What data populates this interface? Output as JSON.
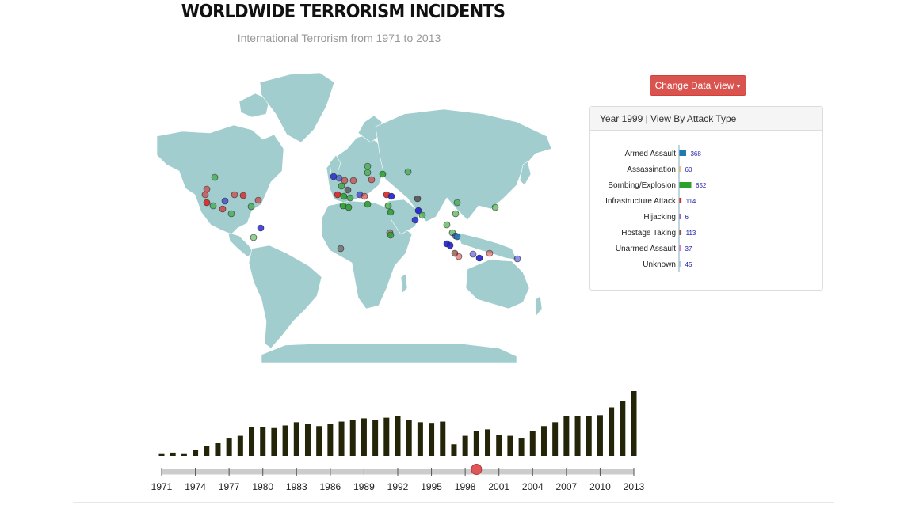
{
  "header": {
    "title": "WORLDWIDE TERRORISM INCIDENTS",
    "subtitle": "International Terrorism from 1971 to 2013"
  },
  "controls": {
    "change_view_label": "Change Data View"
  },
  "panel": {
    "heading": "Year 1999 | View By Attack Type"
  },
  "colors": {
    "land": "#a2cdcf",
    "timeline_bar": "#242409",
    "slider_track": "#cccccc",
    "slider_handle": "#e15759"
  },
  "chart_data": [
    {
      "type": "bar",
      "orientation": "horizontal",
      "categories": [
        "Armed Assault",
        "Assassination",
        "Bombing/Explosion",
        "Infrastructure Attack",
        "Hijacking",
        "Hostage Taking",
        "Unarmed Assault",
        "Unknown"
      ],
      "values": [
        368,
        60,
        652,
        114,
        6,
        113,
        37,
        45
      ],
      "colors": [
        "#1f77b4",
        "#ffbb78",
        "#2ca02c",
        "#d62728",
        "#9467bd",
        "#8c564b",
        "#e377c2",
        "#aec7e8"
      ]
    },
    {
      "type": "bar",
      "x": [
        1971,
        1972,
        1973,
        1974,
        1975,
        1976,
        1977,
        1978,
        1979,
        1980,
        1981,
        1982,
        1983,
        1984,
        1985,
        1986,
        1987,
        1988,
        1989,
        1990,
        1991,
        1992,
        1993,
        1994,
        1995,
        1996,
        1997,
        1998,
        1999,
        2000,
        2001,
        2002,
        2003,
        2004,
        2005,
        2006,
        2007,
        2008,
        2009,
        2010,
        2011,
        2012,
        2013
      ],
      "values": [
        4,
        5,
        4,
        9,
        15,
        20,
        28,
        31,
        45,
        44,
        43,
        47,
        52,
        50,
        46,
        50,
        53,
        56,
        58,
        56,
        59,
        61,
        55,
        52,
        51,
        53,
        18,
        31,
        38,
        41,
        32,
        31,
        28,
        38,
        46,
        52,
        61,
        61,
        62,
        63,
        75,
        85,
        100
      ],
      "tick_labels": [
        "1971",
        "1974",
        "1977",
        "1980",
        "1983",
        "1986",
        "1989",
        "1992",
        "1995",
        "1998",
        "2001",
        "2004",
        "2007",
        "2010",
        "2013"
      ],
      "selected_year": 1999,
      "ylim": [
        0,
        100
      ]
    }
  ]
}
